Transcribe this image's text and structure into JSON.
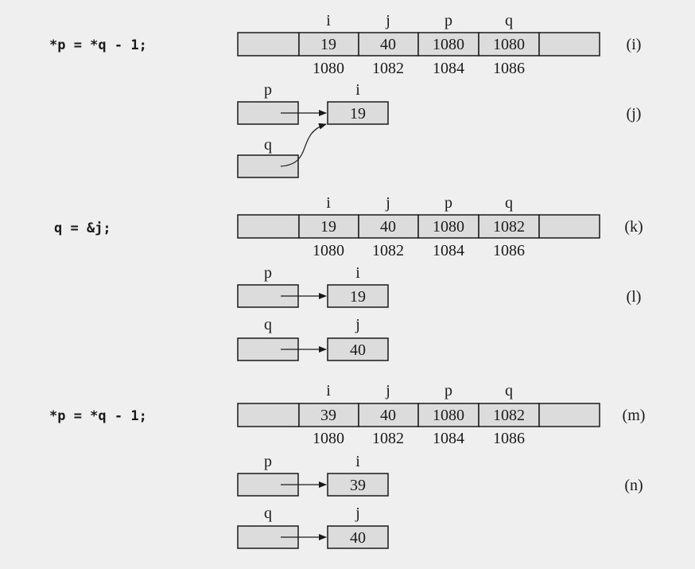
{
  "sections": [
    {
      "statement": "*p = *q - 1;",
      "memory": {
        "id": "(i)",
        "vars": [
          "i",
          "j",
          "p",
          "q"
        ],
        "values": [
          "19",
          "40",
          "1080",
          "1080"
        ],
        "addrs": [
          "1080",
          "1082",
          "1084",
          "1086"
        ]
      },
      "pointers": {
        "id": "(j)",
        "items": [
          {
            "ptr": "p",
            "target": "i",
            "value": "19"
          },
          {
            "ptr": "q",
            "target": "",
            "value": ""
          }
        ],
        "shared_target": true
      }
    },
    {
      "statement": "q = &j;",
      "memory": {
        "id": "(k)",
        "vars": [
          "i",
          "j",
          "p",
          "q"
        ],
        "values": [
          "19",
          "40",
          "1080",
          "1082"
        ],
        "addrs": [
          "1080",
          "1082",
          "1084",
          "1086"
        ]
      },
      "pointers": {
        "id": "(l)",
        "items": [
          {
            "ptr": "p",
            "target": "i",
            "value": "19"
          },
          {
            "ptr": "q",
            "target": "j",
            "value": "40"
          }
        ],
        "shared_target": false
      }
    },
    {
      "statement": "*p = *q - 1;",
      "memory": {
        "id": "(m)",
        "vars": [
          "i",
          "j",
          "p",
          "q"
        ],
        "values": [
          "39",
          "40",
          "1080",
          "1082"
        ],
        "addrs": [
          "1080",
          "1082",
          "1084",
          "1086"
        ]
      },
      "pointers": {
        "id": "(n)",
        "items": [
          {
            "ptr": "p",
            "target": "i",
            "value": "39"
          },
          {
            "ptr": "q",
            "target": "j",
            "value": "40"
          }
        ],
        "shared_target": false
      }
    }
  ]
}
